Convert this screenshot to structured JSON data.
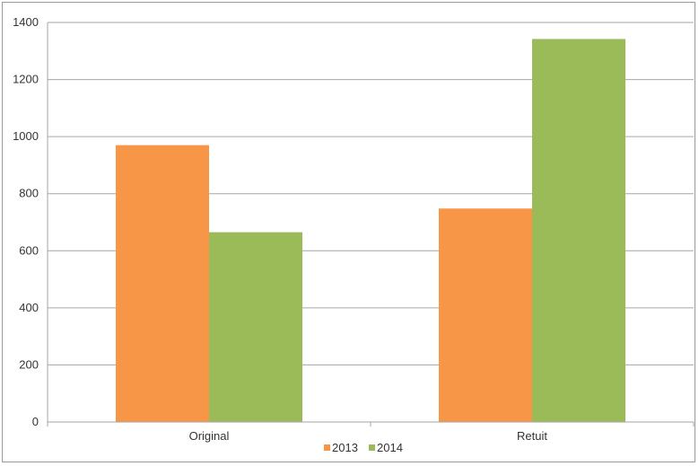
{
  "chart_data": {
    "type": "bar",
    "categories": [
      "Original",
      "Retuit"
    ],
    "series": [
      {
        "name": "2013",
        "values": [
          970,
          748
        ],
        "color": "#f79646"
      },
      {
        "name": "2014",
        "values": [
          665,
          1342
        ],
        "color": "#9bbb59"
      }
    ],
    "title": "",
    "xlabel": "",
    "ylabel": "",
    "ylim": [
      0,
      1400
    ],
    "yticks": [
      0,
      200,
      400,
      600,
      800,
      1000,
      1200,
      1400
    ],
    "grid": true,
    "legend": "bottom"
  }
}
